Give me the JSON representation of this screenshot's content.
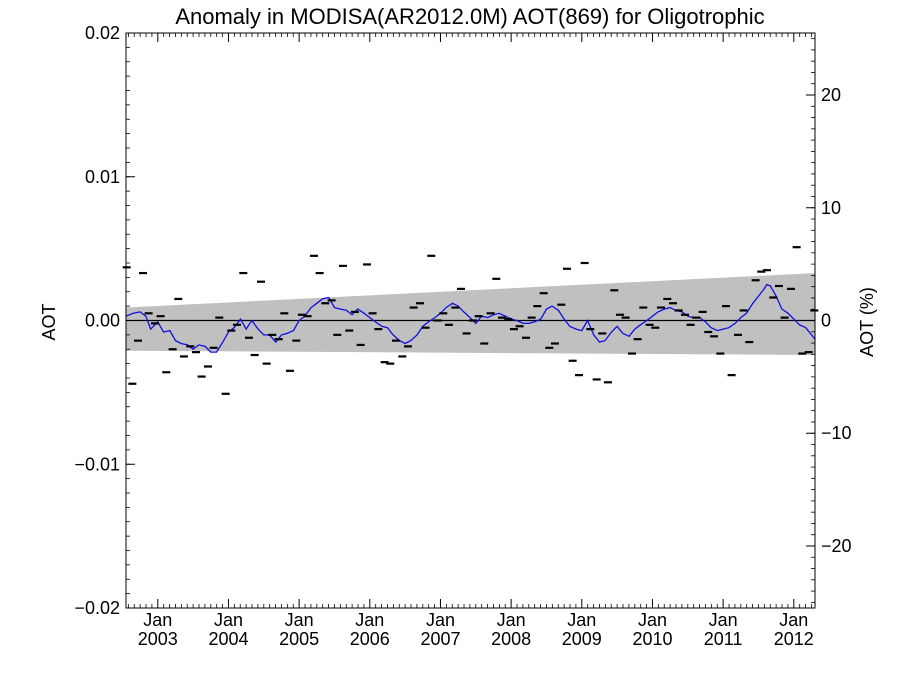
{
  "chart_data": {
    "type": "scatter",
    "title": "Anomaly in MODISA(AR2012.0M) AOT(869) for Oligotrophic",
    "ylabel": "AOT",
    "y2label": "AOT (%)",
    "ylim": [
      -0.02,
      0.02
    ],
    "y2lim": [
      -25.5,
      25.5
    ],
    "xlim": [
      2002.55,
      2012.3
    ],
    "y_ticks": [
      {
        "value": 0.02,
        "label": "0.02"
      },
      {
        "value": 0.01,
        "label": "0.01"
      },
      {
        "value": 0.0,
        "label": "0.00"
      },
      {
        "value": -0.01,
        "label": "−0.01"
      },
      {
        "value": -0.02,
        "label": "−0.02"
      }
    ],
    "y2_ticks": [
      {
        "value": 20,
        "label": "20"
      },
      {
        "value": 10,
        "label": "10"
      },
      {
        "value": 0,
        "label": "0"
      },
      {
        "value": -10,
        "label": "−10"
      },
      {
        "value": -20,
        "label": "−20"
      }
    ],
    "x_ticks": [
      {
        "value": 2003.0,
        "month": "Jan",
        "year": "2003"
      },
      {
        "value": 2004.0,
        "month": "Jan",
        "year": "2004"
      },
      {
        "value": 2005.0,
        "month": "Jan",
        "year": "2005"
      },
      {
        "value": 2006.0,
        "month": "Jan",
        "year": "2006"
      },
      {
        "value": 2007.0,
        "month": "Jan",
        "year": "2007"
      },
      {
        "value": 2008.0,
        "month": "Jan",
        "year": "2008"
      },
      {
        "value": 2009.0,
        "month": "Jan",
        "year": "2009"
      },
      {
        "value": 2010.0,
        "month": "Jan",
        "year": "2010"
      },
      {
        "value": 2011.0,
        "month": "Jan",
        "year": "2011"
      },
      {
        "value": 2012.0,
        "month": "Jan",
        "year": "2012"
      }
    ],
    "band": {
      "x": [
        2002.55,
        2012.3
      ],
      "upper": [
        0.0009,
        0.0033
      ],
      "lower": [
        -0.0021,
        -0.0024
      ]
    },
    "series": [
      {
        "values": [
          [
            2002.56,
            0.0037
          ],
          [
            2002.64,
            -0.0044
          ],
          [
            2002.72,
            -0.0014
          ],
          [
            2002.79,
            0.0033
          ],
          [
            2002.87,
            0.0005
          ],
          [
            2002.96,
            -0.0002
          ],
          [
            2003.04,
            0.0003
          ],
          [
            2003.12,
            -0.0036
          ],
          [
            2003.21,
            -0.002
          ],
          [
            2003.29,
            0.0015
          ],
          [
            2003.37,
            -0.0025
          ],
          [
            2003.46,
            -0.0018
          ],
          [
            2003.54,
            -0.0022
          ],
          [
            2003.62,
            -0.0039
          ],
          [
            2003.71,
            -0.0032
          ],
          [
            2003.79,
            -0.0019
          ],
          [
            2003.87,
            0.0002
          ],
          [
            2003.96,
            -0.0051
          ],
          [
            2004.04,
            -0.0007
          ],
          [
            2004.12,
            -0.0003
          ],
          [
            2004.21,
            0.0033
          ],
          [
            2004.29,
            -0.0012
          ],
          [
            2004.37,
            -0.0024
          ],
          [
            2004.46,
            0.0027
          ],
          [
            2004.54,
            -0.003
          ],
          [
            2004.62,
            -0.001
          ],
          [
            2004.71,
            -0.0013
          ],
          [
            2004.79,
            0.0005
          ],
          [
            2004.87,
            -0.0035
          ],
          [
            2004.96,
            -0.0014
          ],
          [
            2005.04,
            0.0004
          ],
          [
            2005.12,
            0.0003
          ],
          [
            2005.21,
            0.0045
          ],
          [
            2005.29,
            0.0033
          ],
          [
            2005.37,
            0.0012
          ],
          [
            2005.46,
            0.0014
          ],
          [
            2005.54,
            -0.001
          ],
          [
            2005.62,
            0.0038
          ],
          [
            2005.71,
            -0.0007
          ],
          [
            2005.79,
            0.0006
          ],
          [
            2005.87,
            -0.0017
          ],
          [
            2005.96,
            0.0039
          ],
          [
            2006.04,
            0.0005
          ],
          [
            2006.12,
            -0.0006
          ],
          [
            2006.21,
            -0.0029
          ],
          [
            2006.29,
            -0.003
          ],
          [
            2006.37,
            -0.0014
          ],
          [
            2006.46,
            -0.0025
          ],
          [
            2006.54,
            -0.0018
          ],
          [
            2006.62,
            0.0009
          ],
          [
            2006.71,
            0.0012
          ],
          [
            2006.79,
            -0.0005
          ],
          [
            2006.87,
            0.0045
          ],
          [
            2006.96,
            0.0
          ],
          [
            2007.04,
            0.0005
          ],
          [
            2007.12,
            -0.0003
          ],
          [
            2007.21,
            0.0009
          ],
          [
            2007.29,
            0.0022
          ],
          [
            2007.37,
            -0.0009
          ],
          [
            2007.46,
            0.0
          ],
          [
            2007.54,
            0.0003
          ],
          [
            2007.62,
            -0.0016
          ],
          [
            2007.71,
            0.0005
          ],
          [
            2007.79,
            0.0029
          ],
          [
            2007.87,
            0.0002
          ],
          [
            2007.96,
            0.0001
          ],
          [
            2008.04,
            -0.0006
          ],
          [
            2008.12,
            -0.0004
          ],
          [
            2008.21,
            -0.0012
          ],
          [
            2008.29,
            0.0002
          ],
          [
            2008.37,
            0.001
          ],
          [
            2008.46,
            0.0019
          ],
          [
            2008.54,
            -0.0019
          ],
          [
            2008.62,
            -0.0016
          ],
          [
            2008.71,
            0.0011
          ],
          [
            2008.79,
            0.0036
          ],
          [
            2008.87,
            -0.0028
          ],
          [
            2008.96,
            -0.0038
          ],
          [
            2009.04,
            0.004
          ],
          [
            2009.12,
            -0.0006
          ],
          [
            2009.21,
            -0.0041
          ],
          [
            2009.29,
            -0.0009
          ],
          [
            2009.37,
            -0.0043
          ],
          [
            2009.46,
            0.0021
          ],
          [
            2009.54,
            0.0004
          ],
          [
            2009.62,
            0.0002
          ],
          [
            2009.71,
            -0.0023
          ],
          [
            2009.79,
            -0.0013
          ],
          [
            2009.87,
            0.0009
          ],
          [
            2009.96,
            -0.0003
          ],
          [
            2010.04,
            -0.0005
          ],
          [
            2010.12,
            0.0009
          ],
          [
            2010.21,
            0.0015
          ],
          [
            2010.29,
            0.0012
          ],
          [
            2010.37,
            0.0007
          ],
          [
            2010.46,
            0.0004
          ],
          [
            2010.54,
            -0.0003
          ],
          [
            2010.62,
            0.0002
          ],
          [
            2010.71,
            0.0006
          ],
          [
            2010.79,
            -0.0008
          ],
          [
            2010.87,
            -0.0011
          ],
          [
            2010.96,
            -0.0023
          ],
          [
            2011.04,
            0.001
          ],
          [
            2011.12,
            -0.0038
          ],
          [
            2011.21,
            -0.001
          ],
          [
            2011.29,
            0.0007
          ],
          [
            2011.37,
            -0.0015
          ],
          [
            2011.46,
            0.0028
          ],
          [
            2011.54,
            0.0034
          ],
          [
            2011.62,
            0.0035
          ],
          [
            2011.71,
            0.0016
          ],
          [
            2011.79,
            0.0024
          ],
          [
            2011.87,
            0.0002
          ],
          [
            2011.96,
            0.0022
          ],
          [
            2012.04,
            0.0051
          ],
          [
            2012.12,
            -0.0023
          ],
          [
            2012.21,
            -0.0022
          ],
          [
            2012.29,
            0.0007
          ]
        ]
      },
      {
        "color": "#1010e0",
        "values": [
          [
            2002.55,
            0.0003
          ],
          [
            2002.65,
            0.0005
          ],
          [
            2002.75,
            0.0006
          ],
          [
            2002.83,
            0.0003
          ],
          [
            2002.9,
            -0.0006
          ],
          [
            2003.0,
            -0.0001
          ],
          [
            2003.08,
            -0.0008
          ],
          [
            2003.17,
            -0.0007
          ],
          [
            2003.25,
            -0.0014
          ],
          [
            2003.33,
            -0.0016
          ],
          [
            2003.42,
            -0.0017
          ],
          [
            2003.5,
            -0.002
          ],
          [
            2003.58,
            -0.0017
          ],
          [
            2003.67,
            -0.0018
          ],
          [
            2003.75,
            -0.0022
          ],
          [
            2003.83,
            -0.0022
          ],
          [
            2003.92,
            -0.0015
          ],
          [
            2004.0,
            -0.0008
          ],
          [
            2004.08,
            -0.0005
          ],
          [
            2004.17,
            0.0001
          ],
          [
            2004.25,
            -0.0006
          ],
          [
            2004.33,
            0.0
          ],
          [
            2004.42,
            -0.0006
          ],
          [
            2004.5,
            -0.001
          ],
          [
            2004.58,
            -0.001
          ],
          [
            2004.67,
            -0.0015
          ],
          [
            2004.75,
            -0.001
          ],
          [
            2004.83,
            -0.0009
          ],
          [
            2004.92,
            -0.0007
          ],
          [
            2005.0,
            0.0
          ],
          [
            2005.08,
            0.0003
          ],
          [
            2005.17,
            0.0009
          ],
          [
            2005.25,
            0.0012
          ],
          [
            2005.33,
            0.0015
          ],
          [
            2005.42,
            0.0016
          ],
          [
            2005.5,
            0.0009
          ],
          [
            2005.58,
            0.0008
          ],
          [
            2005.67,
            0.0007
          ],
          [
            2005.75,
            0.0004
          ],
          [
            2005.83,
            0.0008
          ],
          [
            2005.92,
            0.0005
          ],
          [
            2006.0,
            0.0002
          ],
          [
            2006.08,
            -0.0001
          ],
          [
            2006.17,
            -0.0004
          ],
          [
            2006.25,
            -0.0005
          ],
          [
            2006.33,
            -0.001
          ],
          [
            2006.42,
            -0.0014
          ],
          [
            2006.5,
            -0.0016
          ],
          [
            2006.58,
            -0.0014
          ],
          [
            2006.67,
            -0.001
          ],
          [
            2006.75,
            -0.0004
          ],
          [
            2006.83,
            -0.0001
          ],
          [
            2006.92,
            0.0002
          ],
          [
            2007.0,
            0.0005
          ],
          [
            2007.08,
            0.0009
          ],
          [
            2007.17,
            0.0012
          ],
          [
            2007.25,
            0.001
          ],
          [
            2007.33,
            0.0006
          ],
          [
            2007.42,
            0.0002
          ],
          [
            2007.5,
            -0.0002
          ],
          [
            2007.58,
            0.0003
          ],
          [
            2007.67,
            0.0002
          ],
          [
            2007.75,
            0.0004
          ],
          [
            2007.83,
            0.0005
          ],
          [
            2007.92,
            0.0003
          ],
          [
            2008.0,
            0.0001
          ],
          [
            2008.08,
            0.0
          ],
          [
            2008.17,
            -0.0002
          ],
          [
            2008.25,
            -0.0002
          ],
          [
            2008.33,
            -0.0001
          ],
          [
            2008.42,
            0.0001
          ],
          [
            2008.5,
            0.0008
          ],
          [
            2008.58,
            0.001
          ],
          [
            2008.67,
            0.0007
          ],
          [
            2008.75,
            0.0001
          ],
          [
            2008.83,
            -0.0004
          ],
          [
            2008.92,
            -0.0006
          ],
          [
            2009.0,
            -0.0007
          ],
          [
            2009.08,
            0.0
          ],
          [
            2009.17,
            -0.001
          ],
          [
            2009.25,
            -0.0015
          ],
          [
            2009.33,
            -0.0014
          ],
          [
            2009.42,
            -0.0008
          ],
          [
            2009.5,
            -0.0004
          ],
          [
            2009.58,
            -0.0009
          ],
          [
            2009.67,
            -0.0011
          ],
          [
            2009.75,
            -0.0006
          ],
          [
            2009.83,
            -0.0003
          ],
          [
            2009.92,
            0.0
          ],
          [
            2010.0,
            0.0003
          ],
          [
            2010.08,
            0.0006
          ],
          [
            2010.17,
            0.0008
          ],
          [
            2010.25,
            0.0009
          ],
          [
            2010.33,
            0.0007
          ],
          [
            2010.42,
            0.0006
          ],
          [
            2010.5,
            0.0003
          ],
          [
            2010.58,
            0.0002
          ],
          [
            2010.67,
            0.0002
          ],
          [
            2010.75,
            -0.0001
          ],
          [
            2010.83,
            -0.0005
          ],
          [
            2010.92,
            -0.0007
          ],
          [
            2011.0,
            -0.0006
          ],
          [
            2011.08,
            -0.0005
          ],
          [
            2011.17,
            -0.0002
          ],
          [
            2011.25,
            0.0002
          ],
          [
            2011.33,
            0.0005
          ],
          [
            2011.42,
            0.0012
          ],
          [
            2011.5,
            0.0017
          ],
          [
            2011.58,
            0.0022
          ],
          [
            2011.62,
            0.0025
          ],
          [
            2011.67,
            0.0024
          ],
          [
            2011.75,
            0.0017
          ],
          [
            2011.83,
            0.0008
          ],
          [
            2011.92,
            0.0005
          ],
          [
            2012.0,
            0.0001
          ],
          [
            2012.08,
            -0.0003
          ],
          [
            2012.17,
            -0.0005
          ],
          [
            2012.25,
            -0.001
          ],
          [
            2012.3,
            -0.0013
          ]
        ]
      }
    ]
  }
}
